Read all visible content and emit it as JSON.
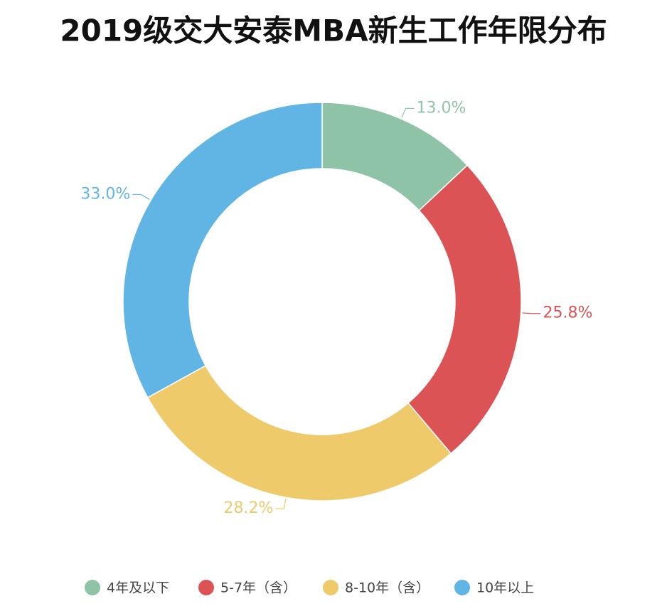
{
  "chart_data": {
    "type": "donut",
    "title": "2019级交大安泰MBA新生工作年限分布",
    "categories": [
      "4年及以下",
      "5-7年（含）",
      "8-10年（含）",
      "10年以上"
    ],
    "values": [
      13.0,
      25.8,
      28.2,
      33.0
    ],
    "value_labels": [
      "13.0%",
      "25.8%",
      "28.2%",
      "33.0%"
    ],
    "colors": [
      "#8fc3a8",
      "#dc5356",
      "#efca6a",
      "#60b5e5"
    ]
  }
}
